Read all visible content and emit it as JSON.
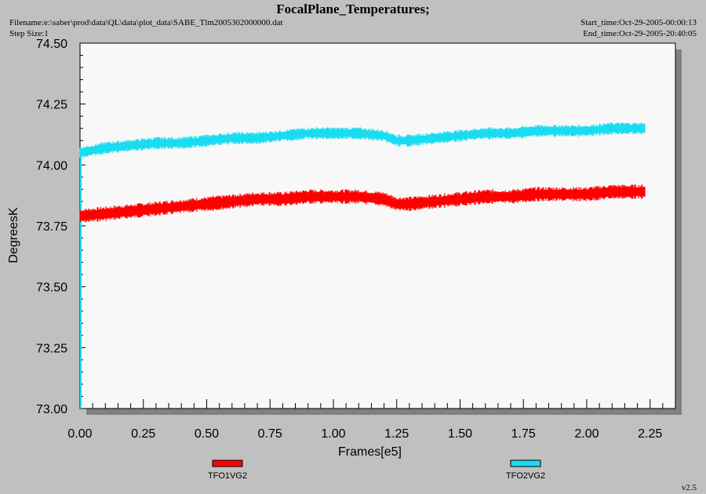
{
  "header": {
    "title": "FocalPlane_Temperatures;",
    "filename": "Filename:e:\\saber\\prod\\data\\QL\\data\\plot_data\\SABE_Tlm2005302000000.dat",
    "step_size": "Step Size:1",
    "start_time": "Start_time:Oct-29-2005-00:00:13",
    "end_time": "End_time:Oct-29-2005-20:40:05"
  },
  "version": "v2.5",
  "colors": {
    "series1": "#ff0000",
    "series2": "#1adcf0",
    "plot_bg": "#f8f8f8",
    "frame_bg": "#c0c0c0"
  },
  "chart_data": {
    "type": "line",
    "title": "FocalPlane_Temperatures;",
    "xlabel": "Frames[e5]",
    "ylabel": "DegreesK",
    "xlim": [
      0.0,
      2.35
    ],
    "ylim": [
      73.0,
      74.5
    ],
    "xticks": [
      "0.00",
      "0.25",
      "0.50",
      "0.75",
      "1.00",
      "1.25",
      "1.50",
      "1.75",
      "2.00",
      "2.25"
    ],
    "yticks": [
      "73.00",
      "73.25",
      "73.50",
      "73.75",
      "74.00",
      "74.25",
      "74.50"
    ],
    "grid": false,
    "legend_position": "bottom",
    "series": [
      {
        "name": "TFO1VG2",
        "color": "#ff0000",
        "band_halfwidth": 0.03,
        "x": [
          0.0,
          0.1,
          0.2,
          0.3,
          0.4,
          0.5,
          0.6,
          0.7,
          0.8,
          0.9,
          1.0,
          1.1,
          1.2,
          1.25,
          1.3,
          1.4,
          1.5,
          1.6,
          1.7,
          1.8,
          1.9,
          2.0,
          2.1,
          2.2,
          2.23
        ],
        "y": [
          73.79,
          73.8,
          73.81,
          73.82,
          73.83,
          73.84,
          73.85,
          73.86,
          73.86,
          73.87,
          73.87,
          73.87,
          73.86,
          73.84,
          73.84,
          73.85,
          73.86,
          73.87,
          73.87,
          73.88,
          73.88,
          73.88,
          73.89,
          73.89,
          73.89
        ]
      },
      {
        "name": "TFO2VG2",
        "color": "#1adcf0",
        "band_halfwidth": 0.025,
        "x": [
          0.0,
          0.1,
          0.2,
          0.3,
          0.4,
          0.5,
          0.6,
          0.7,
          0.8,
          0.9,
          1.0,
          1.1,
          1.2,
          1.25,
          1.3,
          1.4,
          1.5,
          1.6,
          1.7,
          1.8,
          1.9,
          2.0,
          2.1,
          2.2,
          2.23
        ],
        "y": [
          74.05,
          74.07,
          74.08,
          74.09,
          74.09,
          74.1,
          74.11,
          74.11,
          74.12,
          74.13,
          74.13,
          74.13,
          74.12,
          74.1,
          74.1,
          74.11,
          74.12,
          74.13,
          74.13,
          74.14,
          74.14,
          74.14,
          74.15,
          74.15,
          74.15
        ]
      }
    ]
  }
}
